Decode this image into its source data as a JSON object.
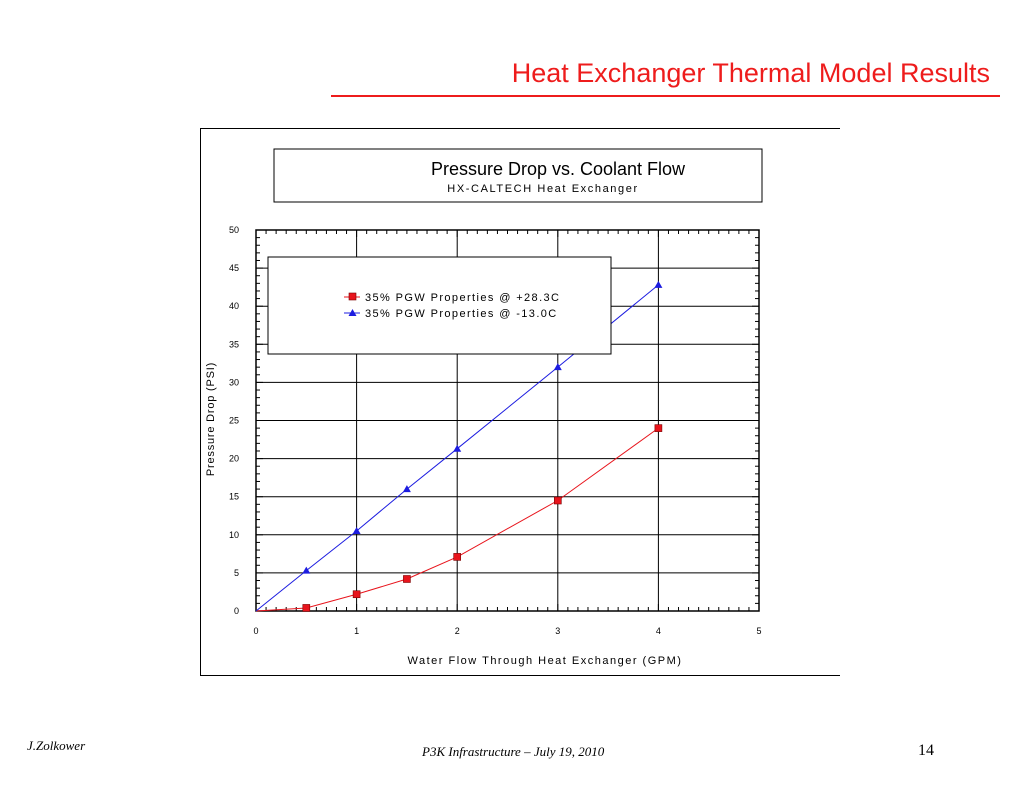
{
  "slide": {
    "title": "Heat Exchanger Thermal Model Results",
    "footer_author": "J.Zolkower",
    "footer_center": "P3K Infrastructure – July 19, 2010",
    "page_number": "14",
    "accent_color": "#ee1c1c"
  },
  "chart_data": {
    "type": "line",
    "title": "Pressure Drop  vs.  Coolant Flow",
    "subtitle": "HX-CALTECH Heat Exchanger",
    "xlabel": "Water Flow Through Heat Exchanger (GPM)",
    "ylabel": "Pressure Drop (PSI)",
    "xlim": [
      0,
      5
    ],
    "ylim": [
      0,
      50
    ],
    "x_ticks": [
      "0",
      "1",
      "2",
      "3",
      "4",
      "5"
    ],
    "y_ticks": [
      "0",
      "5",
      "10",
      "15",
      "20",
      "25",
      "30",
      "35",
      "40",
      "45",
      "50"
    ],
    "grid": true,
    "legend_position": "top-left",
    "series": [
      {
        "name": "35% PGW Properties @ +28.3C",
        "color": "#e8141c",
        "marker": "square",
        "x": [
          0,
          0.5,
          1,
          1.5,
          2,
          3,
          4
        ],
        "y": [
          0,
          0.4,
          2.2,
          4.2,
          7.1,
          14.5,
          24.0
        ]
      },
      {
        "name": "35% PGW Properties @ -13.0C",
        "color": "#1c1ce0",
        "marker": "triangle",
        "x": [
          0,
          0.5,
          1,
          1.5,
          2,
          3,
          4
        ],
        "y": [
          0,
          5.3,
          10.5,
          16.0,
          21.3,
          32.0,
          42.8
        ]
      }
    ]
  }
}
